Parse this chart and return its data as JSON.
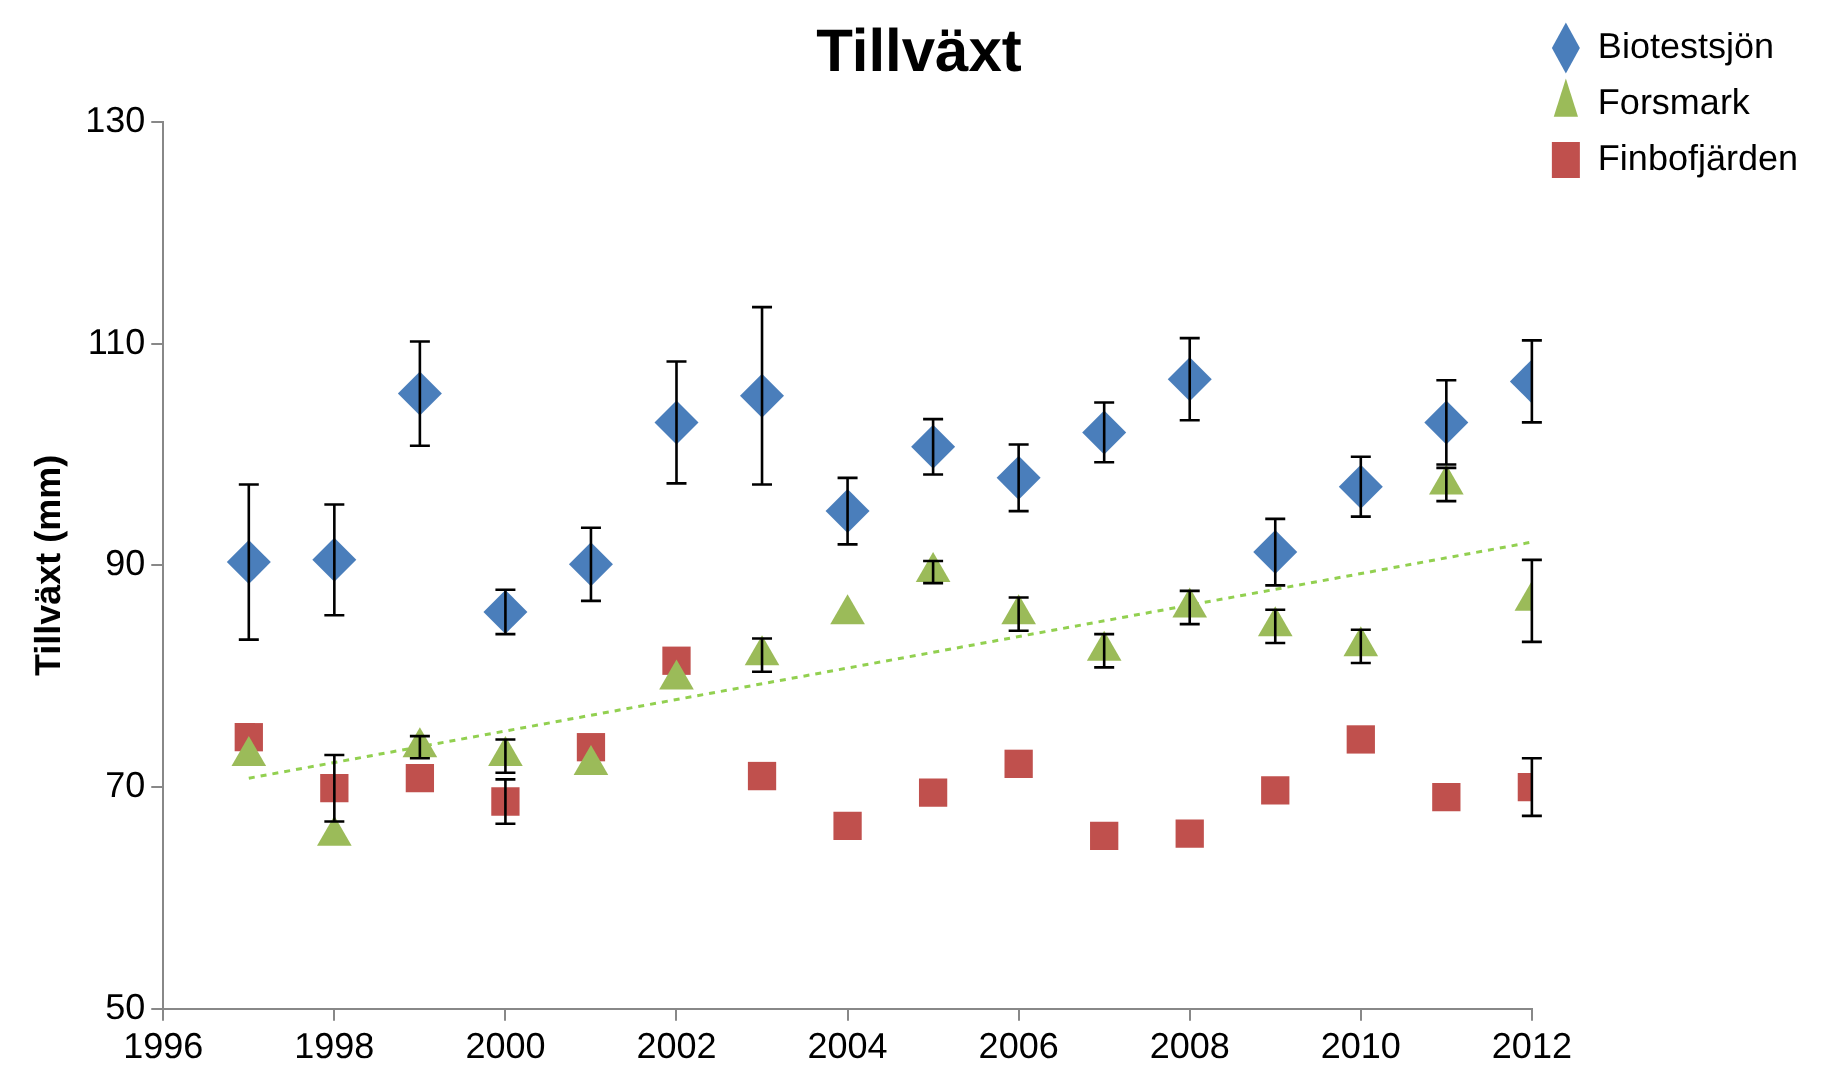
{
  "chart_data": {
    "type": "scatter",
    "title": "Tillväxt",
    "ylabel": "Tillväxt (mm)",
    "xlim": [
      1996,
      2012
    ],
    "xticks": [
      1996,
      1998,
      2000,
      2002,
      2004,
      2006,
      2008,
      2010,
      2012
    ],
    "ylim": [
      50,
      130
    ],
    "yticks": [
      50,
      70,
      90,
      110,
      130
    ],
    "grid": false,
    "legend": "top right",
    "x": [
      1997,
      1998,
      1999,
      2000,
      2001,
      2002,
      2003,
      2004,
      2005,
      2006,
      2007,
      2008,
      2009,
      2010,
      2011,
      2012
    ],
    "series": [
      {
        "name": "Biotestsjön",
        "color": "#4a7ebb",
        "marker": "diamond",
        "values": [
          90.3,
          90.5,
          105.5,
          85.8,
          90.1,
          102.9,
          105.3,
          94.9,
          100.7,
          97.9,
          102,
          106.8,
          91.2,
          97.1,
          102.9,
          106.6
        ],
        "errors": [
          7,
          5,
          4.7,
          2,
          3.3,
          5.5,
          8,
          3,
          2.5,
          3,
          2.7,
          3.7,
          3,
          2.7,
          3.8,
          3.7
        ]
      },
      {
        "name": "Forsmark",
        "color": "#9bbb59",
        "marker": "triangle",
        "values": [
          72.8,
          65.6,
          73.6,
          72.8,
          72,
          79.7,
          81.9,
          85.6,
          89.4,
          85.6,
          82.3,
          86.2,
          84.5,
          82.7,
          97.3,
          86.8
        ],
        "errors": [
          null,
          null,
          1,
          1.5,
          null,
          null,
          1.5,
          null,
          1,
          1.5,
          1.5,
          1.5,
          1.5,
          1.5,
          1.5,
          3.7
        ]
      },
      {
        "name": "Finbofjärden",
        "color": "#c0504d",
        "marker": "square",
        "values": [
          74.5,
          69.9,
          70.8,
          68.7,
          73.6,
          81.4,
          71,
          66.5,
          69.5,
          72.1,
          65.6,
          65.8,
          69.7,
          74.3,
          69.1,
          70
        ],
        "errors": [
          null,
          3,
          null,
          2,
          null,
          null,
          null,
          null,
          null,
          null,
          null,
          null,
          null,
          null,
          null,
          2.6
        ]
      },
      {
        "type": "line",
        "color": "#92d050",
        "line_style": "dotted",
        "marker": "none",
        "x": [
          1997,
          2012
        ],
        "values": [
          70.8,
          92.1
        ]
      }
    ]
  }
}
